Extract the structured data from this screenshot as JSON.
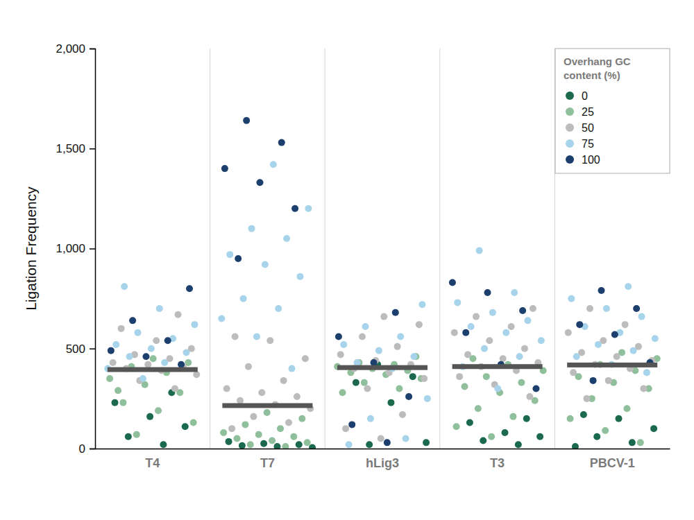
{
  "chart_data": {
    "type": "strip",
    "y_label": "Ligation Frequency",
    "legend_title": "Overhang GC content (%)",
    "legend": "top-right",
    "categories": [
      "T4",
      "T7",
      "hLig3",
      "T3",
      "PBCV-1"
    ],
    "ylim": [
      0,
      2000
    ],
    "yticks": [
      0,
      500,
      {
        "value": 1000,
        "label": "1,000"
      },
      {
        "value": 1500,
        "label": "1,500"
      },
      {
        "value": 2000,
        "label": "2,000"
      }
    ],
    "medians": [
      395,
      215,
      405,
      410,
      418
    ],
    "series": [
      {
        "name": "0",
        "color": "#1b6a4e",
        "values": [
          [
            20,
            60,
            110,
            160,
            230,
            280
          ],
          [
            5,
            10,
            15,
            20,
            25,
            35
          ],
          [
            20,
            30,
            230,
            330,
            360,
            420
          ],
          [
            20,
            40,
            60,
            80,
            130,
            150
          ],
          [
            10,
            30,
            60,
            100,
            150,
            170
          ]
        ]
      },
      {
        "name": "25",
        "color": "#8fbf9b",
        "values": [
          [
            70,
            130,
            190,
            230,
            280,
            320,
            350,
            380,
            410,
            430,
            450,
            290
          ],
          [
            10,
            20,
            30,
            40,
            50,
            60,
            70,
            80,
            100,
            120,
            150,
            180
          ],
          [
            280,
            300,
            330,
            350,
            370,
            380,
            390,
            400,
            410,
            420,
            430,
            460
          ],
          [
            60,
            110,
            160,
            200,
            240,
            280,
            310,
            330,
            360,
            390,
            420,
            450
          ],
          [
            30,
            90,
            150,
            200,
            250,
            300,
            330,
            360,
            390,
            420,
            450,
            480
          ]
        ]
      },
      {
        "name": "50",
        "color": "#bcbcbc",
        "values": [
          [
            300,
            340,
            370,
            390,
            400,
            410,
            420,
            430,
            450,
            470,
            500,
            540,
            600,
            670
          ],
          [
            100,
            130,
            160,
            200,
            220,
            240,
            260,
            280,
            300,
            340,
            410,
            450,
            540,
            560
          ],
          [
            50,
            100,
            170,
            300,
            350,
            380,
            400,
            420,
            440,
            470,
            510,
            560,
            620,
            660
          ],
          [
            260,
            320,
            360,
            390,
            410,
            430,
            450,
            470,
            500,
            540,
            580,
            610,
            660,
            700
          ],
          [
            250,
            300,
            340,
            380,
            400,
            420,
            440,
            460,
            480,
            510,
            540,
            580,
            620,
            700
          ]
        ]
      },
      {
        "name": "75",
        "color": "#a7d4ea",
        "values": [
          [
            350,
            400,
            430,
            460,
            480,
            500,
            520,
            550,
            580,
            620,
            700,
            810
          ],
          [
            400,
            560,
            650,
            700,
            750,
            860,
            920,
            970,
            1050,
            1100,
            1200,
            1420
          ],
          [
            20,
            50,
            150,
            250,
            400,
            430,
            460,
            490,
            520,
            560,
            610,
            720
          ],
          [
            300,
            410,
            460,
            500,
            540,
            580,
            610,
            640,
            680,
            730,
            780,
            990
          ],
          [
            380,
            420,
            460,
            490,
            520,
            550,
            580,
            610,
            660,
            700,
            750,
            810
          ]
        ]
      },
      {
        "name": "100",
        "color": "#1c3f6d",
        "values": [
          [
            420,
            460,
            490,
            540,
            640,
            800
          ],
          [
            950,
            1200,
            1330,
            1400,
            1530,
            1640
          ],
          [
            30,
            120,
            260,
            430,
            560,
            680
          ],
          [
            300,
            420,
            580,
            690,
            780,
            830
          ],
          [
            340,
            430,
            570,
            620,
            700,
            790
          ]
        ]
      }
    ]
  }
}
